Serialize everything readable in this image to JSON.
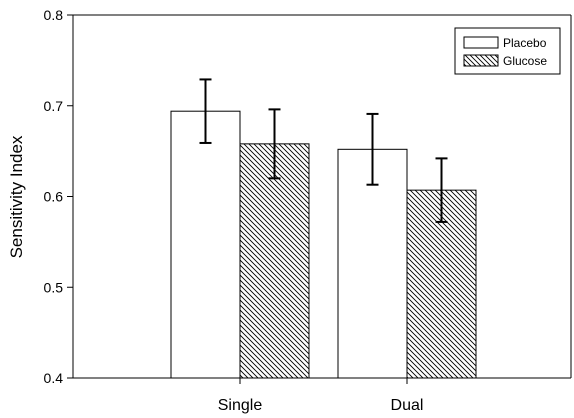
{
  "chart_data": {
    "type": "bar",
    "title": "",
    "xlabel": "",
    "ylabel": "Sensitivity Index",
    "ylim": [
      0.4,
      0.8
    ],
    "yticks": [
      "0.4",
      "0.5",
      "0.6",
      "0.7",
      "0.8"
    ],
    "categories": [
      "Single",
      "Dual"
    ],
    "series": [
      {
        "name": "Placebo",
        "values": [
          0.694,
          0.652
        ],
        "error": [
          0.035,
          0.039
        ],
        "fill": "white"
      },
      {
        "name": "Glucose",
        "values": [
          0.658,
          0.607
        ],
        "error": [
          0.038,
          0.035
        ],
        "fill": "hatched"
      }
    ],
    "grid": false,
    "legend_position": "top-right"
  }
}
